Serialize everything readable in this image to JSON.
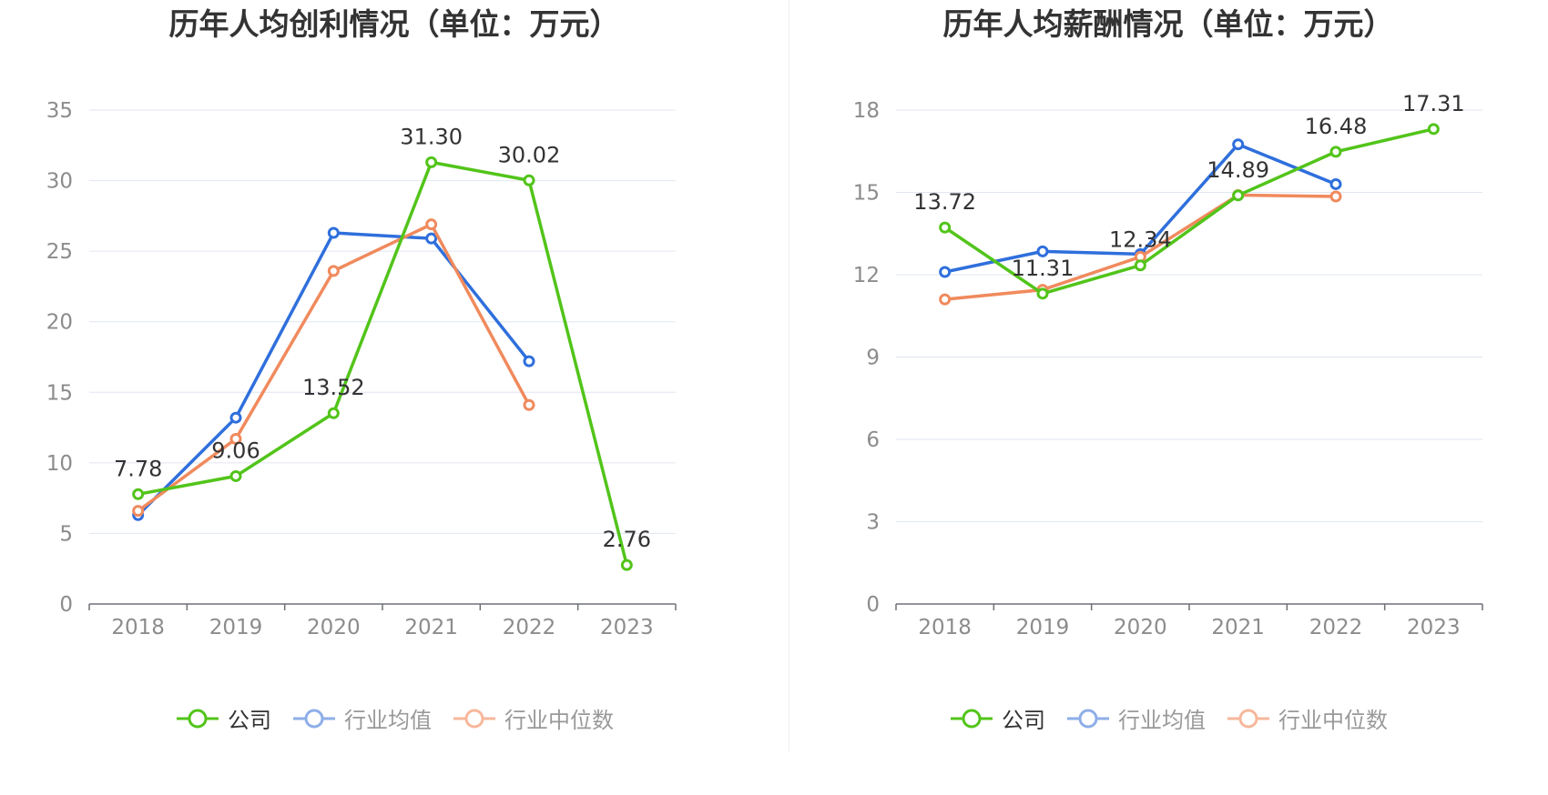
{
  "colors": {
    "company": "#52c41a",
    "industry_avg": "#2f6fdc",
    "industry_median": "#f08a5d"
  },
  "chart_data": [
    {
      "type": "line",
      "title": "历年人均创利情况（单位：万元）",
      "categories": [
        "2018",
        "2019",
        "2020",
        "2021",
        "2022",
        "2023"
      ],
      "ylim": [
        0,
        35
      ],
      "yticks": [
        "0",
        "5",
        "10",
        "15",
        "20",
        "25",
        "30",
        "35"
      ],
      "grid": true,
      "legend_position": "bottom",
      "series": [
        {
          "name": "公司",
          "key": "company",
          "values": [
            7.78,
            9.06,
            13.52,
            31.3,
            30.02,
            2.76
          ],
          "labels": [
            "7.78",
            "9.06",
            "13.52",
            "31.30",
            "30.02",
            "2.76"
          ]
        },
        {
          "name": "行业均值",
          "key": "industry_avg",
          "values": [
            6.3,
            13.2,
            26.3,
            25.9,
            17.2,
            null
          ]
        },
        {
          "name": "行业中位数",
          "key": "industry_median",
          "values": [
            6.6,
            11.7,
            23.6,
            26.9,
            14.1,
            null
          ]
        }
      ]
    },
    {
      "type": "line",
      "title": "历年人均薪酬情况（单位：万元）",
      "categories": [
        "2018",
        "2019",
        "2020",
        "2021",
        "2022",
        "2023"
      ],
      "ylim": [
        0,
        18
      ],
      "yticks": [
        "0",
        "3",
        "6",
        "9",
        "12",
        "15",
        "18"
      ],
      "grid": true,
      "legend_position": "bottom",
      "series": [
        {
          "name": "公司",
          "key": "company",
          "values": [
            13.72,
            11.31,
            12.34,
            14.89,
            16.48,
            17.31
          ],
          "labels": [
            "13.72",
            "11.31",
            "12.34",
            "14.89",
            "16.48",
            "17.31"
          ]
        },
        {
          "name": "行业均值",
          "key": "industry_avg",
          "values": [
            12.1,
            12.85,
            12.75,
            16.75,
            15.3,
            null
          ]
        },
        {
          "name": "行业中位数",
          "key": "industry_median",
          "values": [
            11.1,
            11.45,
            12.65,
            14.9,
            14.85,
            null
          ]
        }
      ]
    }
  ]
}
